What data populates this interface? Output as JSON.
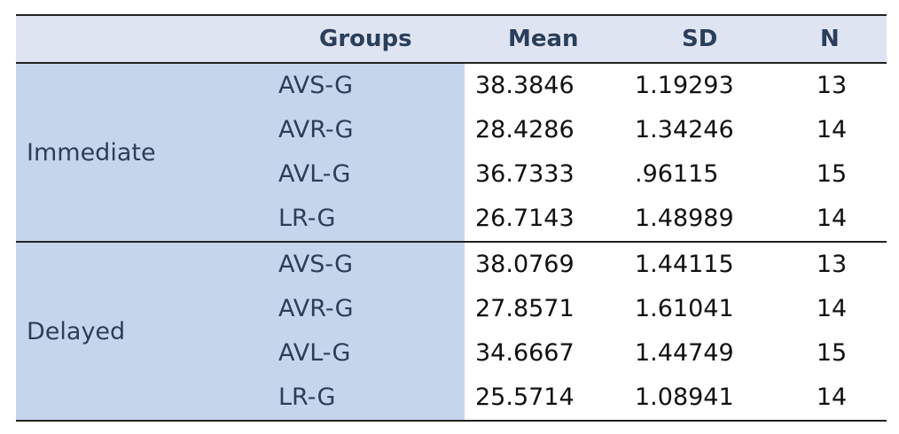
{
  "table": {
    "headers": {
      "groups": "Groups",
      "mean": "Mean",
      "sd": "SD",
      "n": "N"
    },
    "sections": [
      {
        "label": "Immediate",
        "rows": [
          {
            "group": "AVS-G",
            "mean": "38.3846",
            "sd": "1.19293",
            "n": "13"
          },
          {
            "group": "AVR-G",
            "mean": "28.4286",
            "sd": "1.34246",
            "n": "14"
          },
          {
            "group": "AVL-G",
            "mean": "36.7333",
            "sd": ".96115",
            "n": "15"
          },
          {
            "group": "LR-G",
            "mean": "26.7143",
            "sd": "1.48989",
            "n": "14"
          }
        ]
      },
      {
        "label": "Delayed",
        "rows": [
          {
            "group": "AVS-G",
            "mean": "38.0769",
            "sd": "1.44115",
            "n": "13"
          },
          {
            "group": "AVR-G",
            "mean": "27.8571",
            "sd": "1.61041",
            "n": "14"
          },
          {
            "group": "AVL-G",
            "mean": "34.6667",
            "sd": "1.44749",
            "n": "15"
          },
          {
            "group": "LR-G",
            "mean": "25.5714",
            "sd": "1.08941",
            "n": "14"
          }
        ]
      }
    ]
  },
  "colors": {
    "header_bg": "#dee4f2",
    "label_column_bg": "#c5d6ec",
    "label_text": "#2b3e5a"
  }
}
